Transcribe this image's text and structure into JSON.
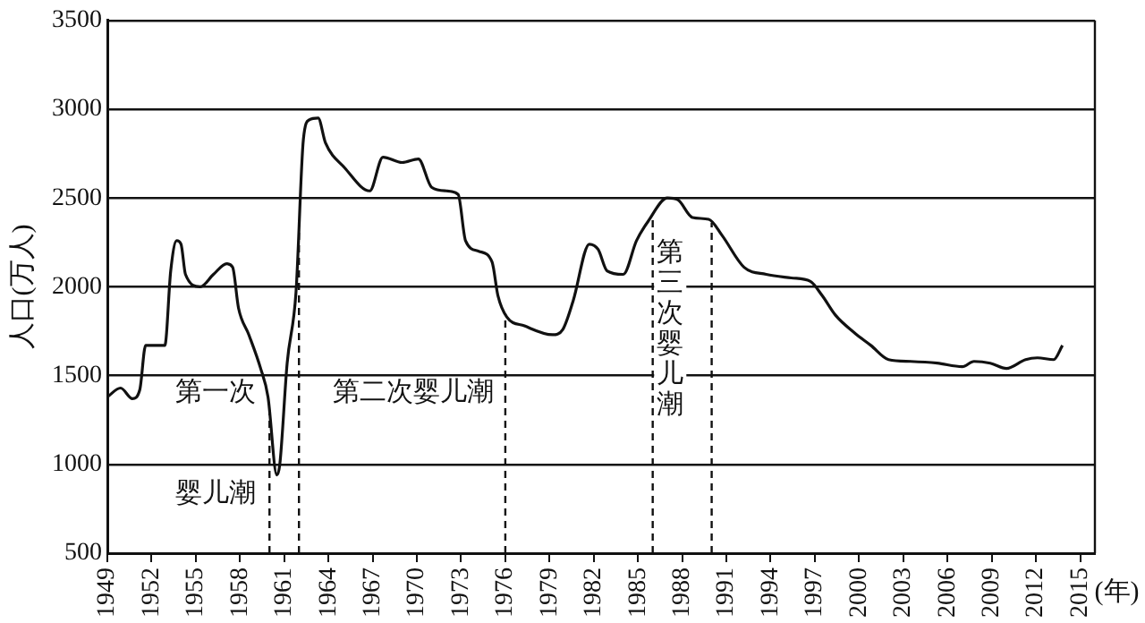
{
  "chart_data": {
    "type": "line",
    "xlabel": "(年)",
    "ylabel": "人口(万人)",
    "xlim": [
      1949,
      2016
    ],
    "xticks": [
      1949,
      1952,
      1955,
      1958,
      1961,
      1964,
      1967,
      1970,
      1973,
      1976,
      1979,
      1982,
      1985,
      1988,
      1991,
      1994,
      1997,
      2000,
      2003,
      2006,
      2009,
      2012,
      2015
    ],
    "ylim": [
      500,
      3500
    ],
    "yticks": [
      500,
      1000,
      1500,
      2000,
      2500,
      3000,
      3500
    ],
    "grid": "y",
    "legend": false,
    "marker": "none",
    "line_style": "solid",
    "series": [
      {
        "color": "#111111",
        "x": [
          1949,
          1949.9,
          1950.7,
          1951.2,
          1951.6,
          1952.9,
          1953.3,
          1953.7,
          1954,
          1954.3,
          1955.3,
          1956.2,
          1957.1,
          1957.5,
          1957.9,
          1958.6,
          1959.4,
          1959.9,
          1960.5,
          1960.7,
          1961.2,
          1961.8,
          1962.3,
          1962.7,
          1963.3,
          1963.8,
          1965.1,
          1966.8,
          1967.7,
          1969,
          1970.1,
          1971,
          1972,
          1972.8,
          1973.3,
          1974.2,
          1975.1,
          1975.5,
          1976.1,
          1977.3,
          1979.2,
          1979.9,
          1980.6,
          1981.7,
          1982.3,
          1982.9,
          1984,
          1984.9,
          1985.7,
          1987,
          1987.7,
          1988.7,
          1989.8,
          1990.7,
          1992.2,
          1993.7,
          1995.4,
          1996.7,
          1997.5,
          1998.4,
          1999.7,
          2000.8,
          2002,
          2003.5,
          2005.3,
          2007,
          2007.8,
          2008.9,
          2010,
          2011.3,
          2012.1,
          2013.2,
          2013.8
        ],
        "values": [
          1380,
          1430,
          1370,
          1420,
          1670,
          1670,
          2090,
          2260,
          2240,
          2070,
          2000,
          2070,
          2130,
          2110,
          1880,
          1730,
          1540,
          1380,
          940,
          1000,
          1570,
          1970,
          2830,
          2940,
          2950,
          2810,
          2670,
          2540,
          2730,
          2700,
          2720,
          2560,
          2540,
          2520,
          2260,
          2200,
          2140,
          1950,
          1830,
          1780,
          1730,
          1760,
          1920,
          2240,
          2210,
          2090,
          2070,
          2260,
          2370,
          2500,
          2490,
          2390,
          2380,
          2290,
          2110,
          2070,
          2050,
          2030,
          1950,
          1840,
          1740,
          1670,
          1590,
          1580,
          1570,
          1550,
          1580,
          1570,
          1540,
          1590,
          1600,
          1590,
          1670
        ]
      }
    ],
    "ref_lines": [
      {
        "axis": "x",
        "value": 1960,
        "line_style": "dashed"
      },
      {
        "axis": "x",
        "value": 1962,
        "line_style": "dashed"
      },
      {
        "axis": "x",
        "value": 1976,
        "line_style": "dashed"
      },
      {
        "axis": "x",
        "value": 1986,
        "line_style": "dashed"
      },
      {
        "axis": "x",
        "value": 1990,
        "line_style": "dashed"
      }
    ],
    "annotations": [
      "第一次",
      "婴儿潮",
      "第二次婴儿潮",
      "第三次婴儿潮"
    ]
  }
}
